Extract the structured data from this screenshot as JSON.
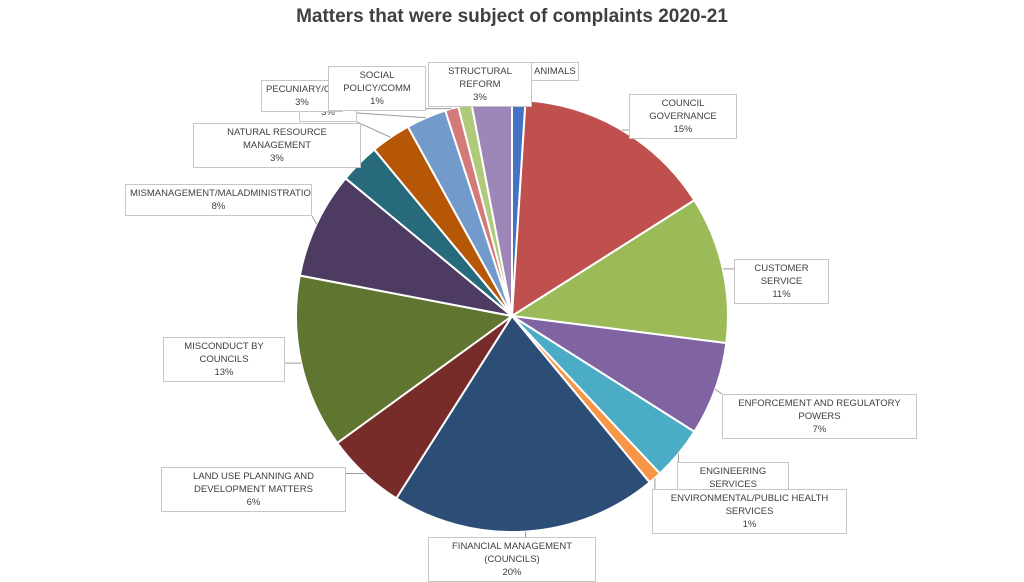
{
  "chart_data": {
    "type": "pie",
    "title": "Matters that were subject of complaints 2020-21",
    "slices": [
      {
        "label": "ANIMALS",
        "value": 1,
        "pct_label": "",
        "color": "#4472C4"
      },
      {
        "label": "COUNCIL GOVERNANCE",
        "value": 15,
        "pct_label": "15%",
        "color": "#C0504D"
      },
      {
        "label": "CUSTOMER SERVICE",
        "value": 11,
        "pct_label": "11%",
        "color": "#9BBB59"
      },
      {
        "label": "ENFORCEMENT AND REGULATORY POWERS",
        "value": 7,
        "pct_label": "7%",
        "color": "#8064A2"
      },
      {
        "label": "ENGINEERING SERVICES",
        "value": 4,
        "pct_label": "4%",
        "color": "#4BACC6"
      },
      {
        "label": "ENVIRONMENTAL/PUBLIC HEALTH SERVICES",
        "value": 1,
        "pct_label": "1%",
        "color": "#F79646"
      },
      {
        "label": "FINANCIAL MANAGEMENT (COUNCILS)",
        "value": 20,
        "pct_label": "20%",
        "color": "#2C4D75"
      },
      {
        "label": "LAND USE PLANNING AND DEVELOPMENT MATTERS",
        "value": 6,
        "pct_label": "6%",
        "color": "#772C2A"
      },
      {
        "label": "MISCONDUCT BY COUNCILS",
        "value": 13,
        "pct_label": "13%",
        "color": "#5F7530"
      },
      {
        "label": "MISMANAGEMENT/MALADMINISTRATION",
        "value": 8,
        "pct_label": "8%",
        "color": "#4D3B62"
      },
      {
        "label": "NATURAL RESOURCE MANAGEMENT",
        "value": 3,
        "pct_label": "3%",
        "color": "#276A7C"
      },
      {
        "label": "",
        "value": 3,
        "pct_label": "3%",
        "color": "#B65708"
      },
      {
        "label": "PECUNIARY/CO",
        "value": 3,
        "pct_label": "3%",
        "color": "#729ACA"
      },
      {
        "label": "SOCIAL POLICY/COMM",
        "value": 1,
        "pct_label": "1%",
        "color": "#D47A78"
      },
      {
        "label": "",
        "value": 1,
        "pct_label": "",
        "color": "#B0CA7C"
      },
      {
        "label": "STRUCTURAL REFORM",
        "value": 3,
        "pct_label": "3%",
        "color": "#9D87B8"
      }
    ],
    "legend": "none",
    "data_labels": "callouts"
  }
}
